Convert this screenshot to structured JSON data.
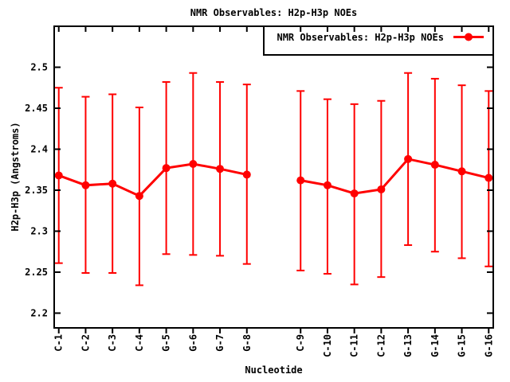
{
  "title": "NMR Observables: H2p-H3p NOEs",
  "axes": {
    "x_label": "Nucleotide",
    "y_label": "H2p-H3p (Angstroms)"
  },
  "legend": {
    "label": "NMR Observables: H2p-H3p NOEs",
    "position": "top-right",
    "boxed": true
  },
  "colors": {
    "series": "#ff0000",
    "axis": "#000000",
    "background": "#ffffff"
  },
  "chart_data": {
    "type": "line",
    "title": "NMR Observables: H2p-H3p NOEs",
    "xlabel": "Nucleotide",
    "ylabel": "H2p-H3p (Angstroms)",
    "grid": false,
    "legend_position": "top-right",
    "categories": [
      "C-1",
      "C-2",
      "C-3",
      "C-4",
      "G-5",
      "G-6",
      "G-7",
      "G-8",
      "C-9",
      "C-10",
      "C-11",
      "C-12",
      "G-13",
      "G-14",
      "G-15",
      "G-16"
    ],
    "x_index": [
      1,
      2,
      3,
      4,
      5,
      6,
      7,
      8,
      10,
      11,
      12,
      13,
      14,
      15,
      16,
      17
    ],
    "gap_after_category": "G-8",
    "series": [
      {
        "name": "NMR Observables: H2p-H3p NOEs",
        "color": "#ff0000",
        "marker": "filled-circle",
        "values": [
          2.368,
          2.356,
          2.358,
          2.343,
          2.377,
          2.382,
          2.376,
          2.369,
          2.362,
          2.356,
          2.346,
          2.351,
          2.388,
          2.381,
          2.373,
          2.365
        ],
        "err_low": [
          2.261,
          2.249,
          2.249,
          2.234,
          2.272,
          2.271,
          2.27,
          2.26,
          2.252,
          2.248,
          2.235,
          2.244,
          2.283,
          2.275,
          2.267,
          2.257
        ],
        "err_high": [
          2.475,
          2.464,
          2.467,
          2.451,
          2.482,
          2.493,
          2.482,
          2.479,
          2.471,
          2.461,
          2.455,
          2.459,
          2.493,
          2.486,
          2.478,
          2.471
        ]
      }
    ],
    "y_ticks": {
      "labels": [
        "2.2",
        "2.25",
        "2.3",
        "2.35",
        "2.4",
        "2.45",
        "2.5"
      ],
      "values": [
        2.2,
        2.25,
        2.3,
        2.35,
        2.4,
        2.45,
        2.5
      ]
    },
    "ylim": [
      2.182,
      2.55
    ],
    "xlim": [
      0.83,
      17.17
    ]
  }
}
